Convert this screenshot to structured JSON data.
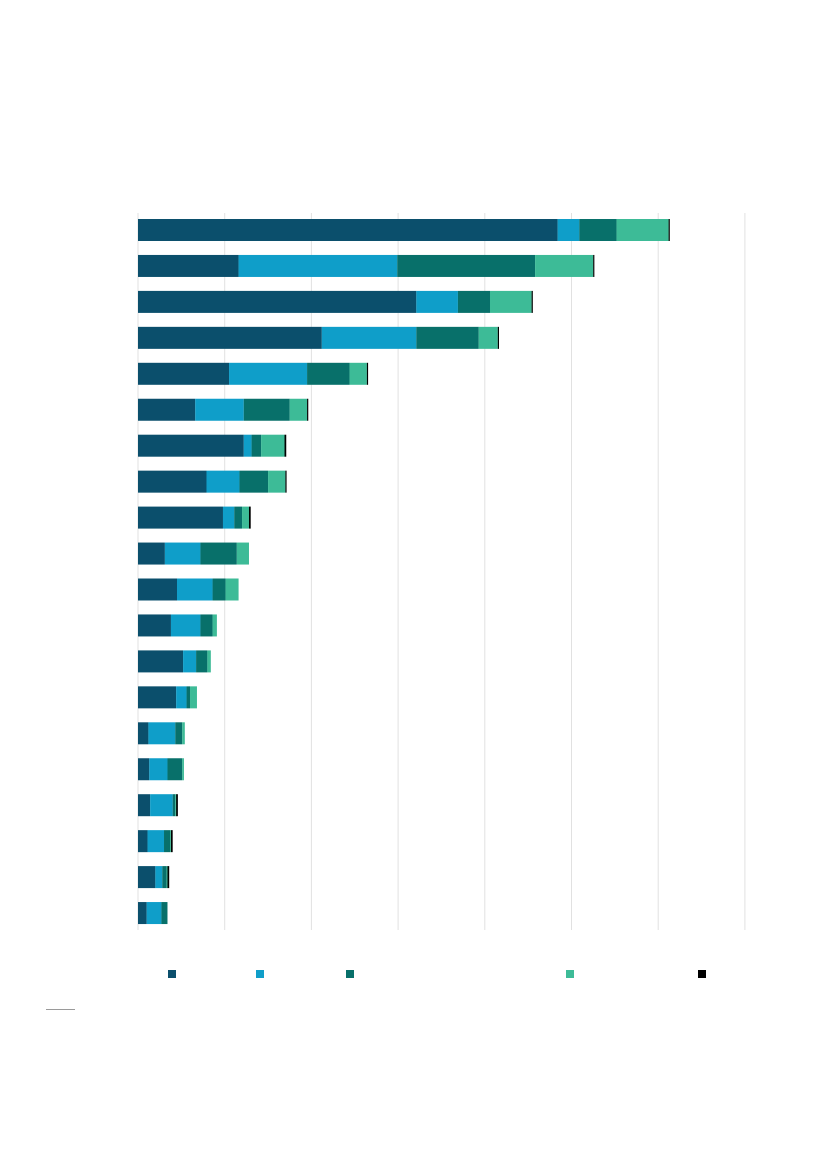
{
  "chart_data": {
    "type": "bar",
    "orientation": "horizontal",
    "stacked": true,
    "grid": true,
    "legend_position": "bottom",
    "xlim": [
      0,
      7
    ],
    "gridlines_x": [
      0,
      1,
      2,
      3,
      4,
      5,
      6,
      7
    ],
    "categories": [
      "",
      "",
      "",
      "",
      "",
      "",
      "",
      "",
      "",
      "",
      "",
      "",
      "",
      "",
      "",
      "",
      "",
      "",
      "",
      ""
    ],
    "series": [
      {
        "color": "#0b4f6c",
        "values": [
          4.84,
          1.16,
          3.21,
          2.12,
          1.05,
          0.66,
          1.22,
          0.79,
          0.98,
          0.31,
          0.45,
          0.38,
          0.52,
          0.44,
          0.12,
          0.13,
          0.14,
          0.11,
          0.2,
          0.1
        ]
      },
      {
        "color": "#0f9ec9",
        "values": [
          0.25,
          1.83,
          0.48,
          1.09,
          0.9,
          0.56,
          0.09,
          0.38,
          0.13,
          0.41,
          0.41,
          0.34,
          0.15,
          0.12,
          0.31,
          0.21,
          0.26,
          0.19,
          0.08,
          0.17
        ]
      },
      {
        "color": "#08706a",
        "values": [
          0.43,
          1.59,
          0.37,
          0.72,
          0.49,
          0.53,
          0.11,
          0.33,
          0.09,
          0.42,
          0.15,
          0.14,
          0.13,
          0.04,
          0.08,
          0.17,
          0.03,
          0.07,
          0.05,
          0.07
        ]
      },
      {
        "color": "#3dbb97",
        "values": [
          0.6,
          0.67,
          0.48,
          0.22,
          0.2,
          0.2,
          0.27,
          0.2,
          0.08,
          0.14,
          0.15,
          0.05,
          0.04,
          0.08,
          0.03,
          0.02,
          0.01,
          0.01,
          0.01,
          0.0
        ]
      },
      {
        "color": "#000000",
        "values": [
          0.01,
          0.01,
          0.01,
          0.01,
          0.01,
          0.01,
          0.02,
          0.01,
          0.02,
          0.0,
          0.0,
          0.0,
          0.0,
          0.0,
          0.0,
          0.0,
          0.02,
          0.02,
          0.02,
          0.0
        ]
      }
    ]
  }
}
